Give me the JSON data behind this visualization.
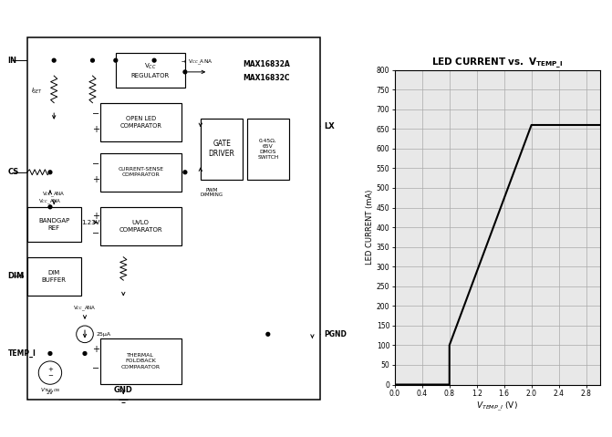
{
  "fig_w": 6.71,
  "fig_h": 4.79,
  "fig_dpi": 100,
  "fig_bg": "#ffffff",
  "plot_bg": "#e8e8e8",
  "graph_xlim": [
    0,
    3.0
  ],
  "graph_ylim": [
    0,
    800
  ],
  "xticks": [
    0,
    0.4,
    0.8,
    1.2,
    1.6,
    2.0,
    2.4,
    2.8
  ],
  "yticks": [
    0,
    50,
    100,
    150,
    200,
    250,
    300,
    350,
    400,
    450,
    500,
    550,
    600,
    650,
    700,
    750,
    800
  ],
  "curve_x": [
    0.0,
    0.8,
    0.8,
    2.0,
    3.0
  ],
  "curve_y": [
    0,
    0,
    100,
    660,
    660
  ],
  "line_color": "#000000",
  "line_width": 1.5,
  "grid_color": "#aaaaaa",
  "grid_lw": 0.5,
  "title": "LED CURRENT vs. $\\mathbf{V_{TEMP\\_I}}$",
  "ylabel": "LED CURRENT (mA)",
  "xlabel": "$V_{TEMP\\_I}$ (V)",
  "chip_names": [
    "MAX16832A",
    "MAX16832C"
  ]
}
